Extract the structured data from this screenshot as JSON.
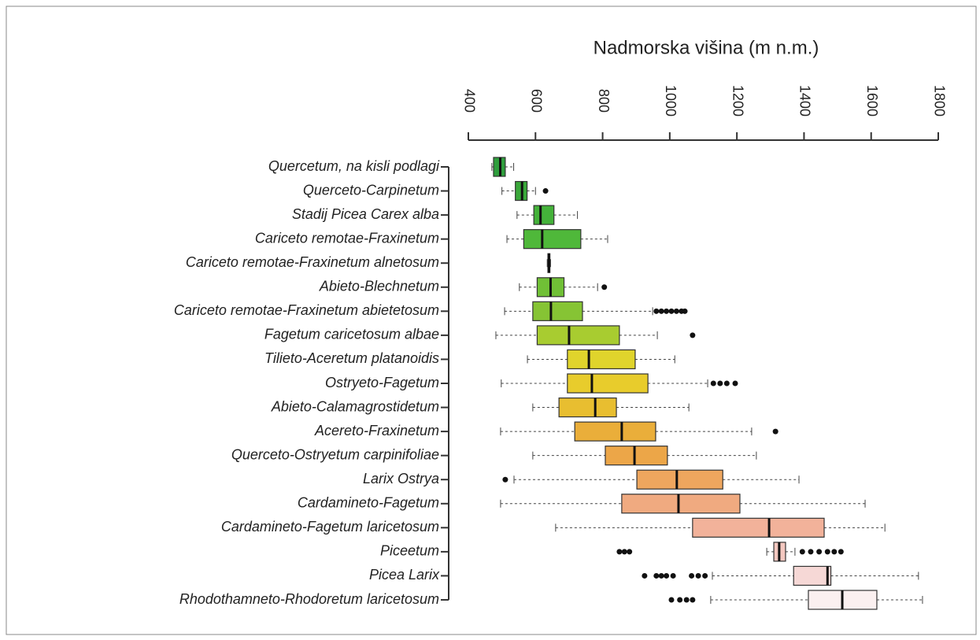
{
  "chart_data": {
    "type": "boxplot",
    "xlabel": "Nadmorska višina (m n.m.)",
    "categories": [
      "Quercetum, na kisli podlagi",
      "Querceto-Carpinetum",
      "Stadij Picea Carex alba",
      "Cariceto remotae-Fraxinetum",
      "Cariceto remotae-Fraxinetum alnetosum",
      "Abieto-Blechnetum",
      "Cariceto remotae-Fraxinetum abietetosum",
      "Fagetum caricetosum albae",
      "Tilieto-Aceretum platanoidis",
      "Ostryeto-Fagetum",
      "Abieto-Calamagrostidetum",
      "Acereto-Fraxinetum",
      "Querceto-Ostryetum carpinifoliae",
      "Larix Ostrya",
      "Cardamineto-Fagetum",
      "Cardamineto-Fagetum laricetosum",
      "Piceetum",
      "Picea Larix",
      "Rhodothamneto-Rhodoretum laricetosum"
    ],
    "whisker_low": [
      470,
      500,
      545,
      515,
      635,
      552,
      508,
      482,
      576,
      498,
      592,
      496,
      592,
      536,
      496,
      660,
      1289,
      1127,
      1122
    ],
    "q1": [
      475,
      540,
      595,
      565,
      637,
      605,
      592,
      605,
      695,
      695,
      670,
      717,
      808,
      902,
      857,
      1068,
      1310,
      1369,
      1413
    ],
    "median": [
      495,
      560,
      615,
      620,
      640,
      645,
      646,
      700,
      759,
      768,
      778,
      857,
      895,
      1021,
      1026,
      1296,
      1326,
      1470,
      1514
    ],
    "q3": [
      510,
      575,
      655,
      735,
      643,
      685,
      740,
      850,
      897,
      935,
      841,
      958,
      993,
      1158,
      1209,
      1460,
      1345,
      1480,
      1617
    ],
    "whisker_high": [
      535,
      600,
      725,
      815,
      645,
      785,
      949,
      963,
      1015,
      1113,
      1057,
      1244,
      1258,
      1385,
      1582,
      1641,
      1373,
      1741,
      1753
    ],
    "outliers": [
      [],
      [
        630
      ],
      [],
      [],
      [],
      [
        805
      ],
      [
        960,
        975,
        990,
        1005,
        1020,
        1035,
        1045
      ],
      [
        1068
      ],
      [],
      [
        1130,
        1150,
        1170,
        1195
      ],
      [],
      [
        1315
      ],
      [],
      [
        510
      ],
      [],
      [],
      [
        850,
        865,
        880,
        1395,
        1420,
        1445,
        1470,
        1490,
        1510
      ],
      [
        925,
        960,
        975,
        990,
        1010,
        1065,
        1085,
        1105
      ],
      [
        1005,
        1030,
        1050,
        1068
      ]
    ],
    "colors": [
      "#2e9e3c",
      "#3aa83a",
      "#44b23a",
      "#4fb83a",
      "#5cbc38",
      "#70c036",
      "#86c434",
      "#a8cc30",
      "#e0d42c",
      "#e8cc2c",
      "#e8be30",
      "#eaae3a",
      "#eca648",
      "#eea65e",
      "#f0aa80",
      "#f2b29a",
      "#f4c8c0",
      "#f6d8d6",
      "#fbf0f0"
    ],
    "xlim": [
      400,
      1800
    ],
    "xticks": [
      400,
      600,
      800,
      1000,
      1200,
      1400,
      1600,
      1800
    ]
  }
}
